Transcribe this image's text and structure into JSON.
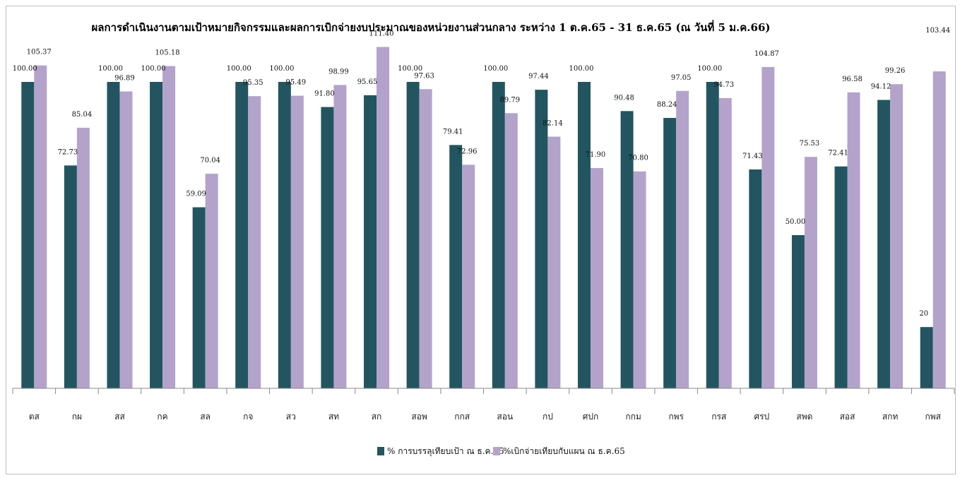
{
  "chart_data": {
    "type": "bar",
    "title": "ผลการดำเนินงานตามเป้าหมายกิจกรรมและผลการเบิกจ่ายงบประมาณของหน่วยงานส่วนกลาง ระหว่าง 1 ต.ค.65 - 31 ธ.ค.65 (ณ วันที่ 5 ม.ค.66)",
    "categories": [
      "ตส",
      "กผ",
      "สส",
      "กค",
      "สล",
      "กจ",
      "สว",
      "สท",
      "สก",
      "สอพ",
      "กกส",
      "สอน",
      "กป",
      "ศปก",
      "กกม",
      "กพร",
      "กรส",
      "ศรป",
      "สพด",
      "สอส",
      "สกท",
      "กพส"
    ],
    "series": [
      {
        "name": "% การบรรลุเทียบเป้า ณ ธ.ค.65",
        "color": "#22555f",
        "values": [
          100.0,
          72.73,
          100.0,
          100.0,
          59.09,
          100.0,
          100.0,
          91.8,
          95.65,
          100.0,
          79.41,
          100.0,
          97.44,
          100.0,
          90.48,
          88.24,
          100.0,
          71.43,
          50.0,
          72.41,
          94.12,
          20
        ],
        "labels": [
          "100.00",
          "72.73",
          "100.00",
          "100.00",
          "59.09",
          "100.00",
          "100.00",
          "91.80",
          "95.65",
          "100.00",
          "79.41",
          "100.00",
          "97.44",
          "100.00",
          "90.48",
          "88.24",
          "100.00",
          "71.43",
          "50.00",
          "72.41",
          "94.12",
          "20"
        ]
      },
      {
        "name": "%เบิกจ่ายเทียบกับแผน ณ ธ.ค.65",
        "color": "#b3a3cb",
        "values": [
          105.37,
          85.04,
          96.89,
          105.18,
          70.04,
          95.35,
          95.49,
          98.99,
          111.4,
          97.63,
          72.96,
          89.79,
          82.14,
          71.9,
          70.8,
          97.05,
          94.73,
          104.87,
          75.53,
          96.58,
          99.26,
          103.44
        ],
        "labels": [
          "105.37",
          "85.04",
          "96.89",
          "105.18",
          "70.04",
          "95.35",
          "95.49",
          "98.99",
          "111.40",
          "97.63",
          "72.96",
          "89.79",
          "82.14",
          "71.90",
          "70.80",
          "97.05",
          "94.73",
          "104.87",
          "75.53",
          "96.58",
          "99.26",
          "103.44"
        ]
      }
    ],
    "ylim": [
      0,
      115
    ],
    "grid": false,
    "legend_position": "bottom-center",
    "axis_color": "#888888"
  }
}
